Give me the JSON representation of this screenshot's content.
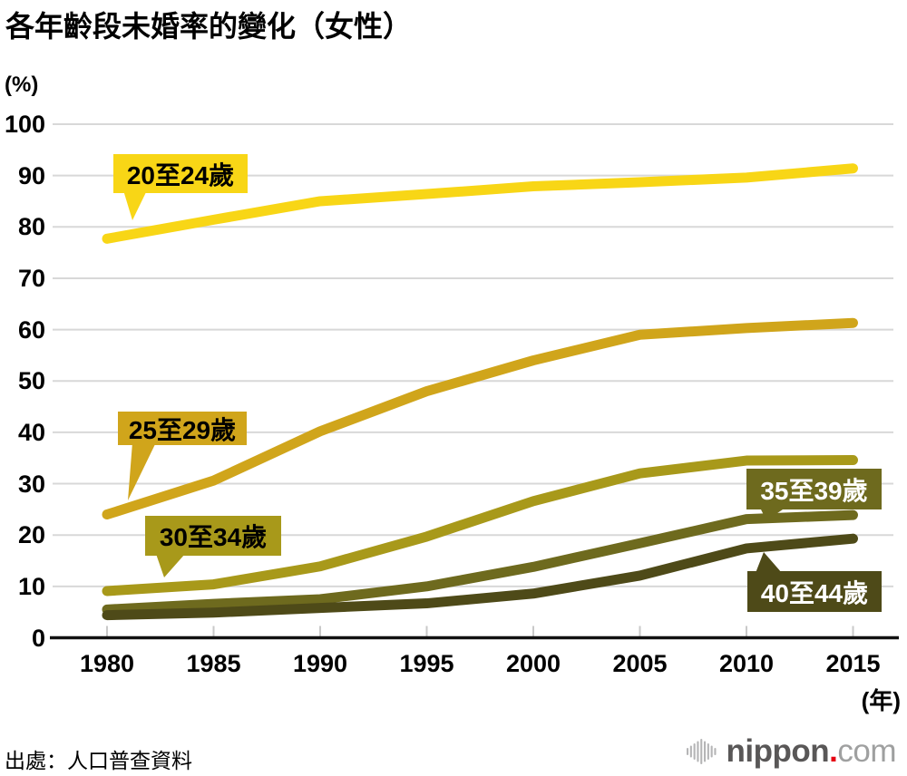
{
  "title": "各年齡段未婚率的變化（女性）",
  "y_axis_unit": "(%)",
  "x_axis_unit": "(年)",
  "source": "出處：人口普查資料",
  "logo": {
    "name": "nippon",
    "dot": ".",
    "tld": "com"
  },
  "chart_data": {
    "type": "line",
    "title": "各年齡段未婚率的變化（女性）",
    "xlabel": "(年)",
    "ylabel": "(%)",
    "ylim": [
      0,
      100
    ],
    "grid": "horizontal",
    "legend_position": "inline-callouts",
    "x": [
      1980,
      1985,
      1990,
      1995,
      2000,
      2005,
      2010,
      2015
    ],
    "x_tick_labels": [
      "1980",
      "1985",
      "1990",
      "1995",
      "2000",
      "2005",
      "2010",
      "2015"
    ],
    "y_ticks": [
      0,
      10,
      20,
      30,
      40,
      50,
      60,
      70,
      80,
      90,
      100
    ],
    "y_tick_labels": [
      "0",
      "10",
      "20",
      "30",
      "40",
      "50",
      "60",
      "70",
      "80",
      "90",
      "100"
    ],
    "series": [
      {
        "name": "20至24歲",
        "color": "#F8D616",
        "label_text_color": "#000000",
        "values": [
          77.7,
          81.4,
          85.0,
          86.4,
          87.9,
          88.7,
          89.6,
          91.4
        ]
      },
      {
        "name": "25至29歲",
        "color": "#D0A51B",
        "label_text_color": "#000000",
        "values": [
          24.0,
          30.6,
          40.2,
          48.0,
          54.0,
          59.0,
          60.3,
          61.3
        ]
      },
      {
        "name": "30至34歲",
        "color": "#A8991A",
        "label_text_color": "#000000",
        "values": [
          9.1,
          10.4,
          13.9,
          19.7,
          26.6,
          32.0,
          34.5,
          34.6
        ]
      },
      {
        "name": "35至39歲",
        "color": "#6E6A1E",
        "label_text_color": "#FFFFFF",
        "values": [
          5.5,
          6.6,
          7.5,
          10.0,
          13.8,
          18.4,
          23.1,
          23.9
        ]
      },
      {
        "name": "40至44歲",
        "color": "#4E4A18",
        "label_text_color": "#FFFFFF",
        "values": [
          4.4,
          4.9,
          5.8,
          6.7,
          8.6,
          12.1,
          17.4,
          19.3
        ]
      }
    ],
    "colors": {
      "grid": "#d8d8d8",
      "axis": "#111111",
      "tick": "#c9c9c9",
      "logo_gray": "#595757",
      "logo_light_gray": "#9fa0a0",
      "logo_red": "#e60012"
    }
  }
}
